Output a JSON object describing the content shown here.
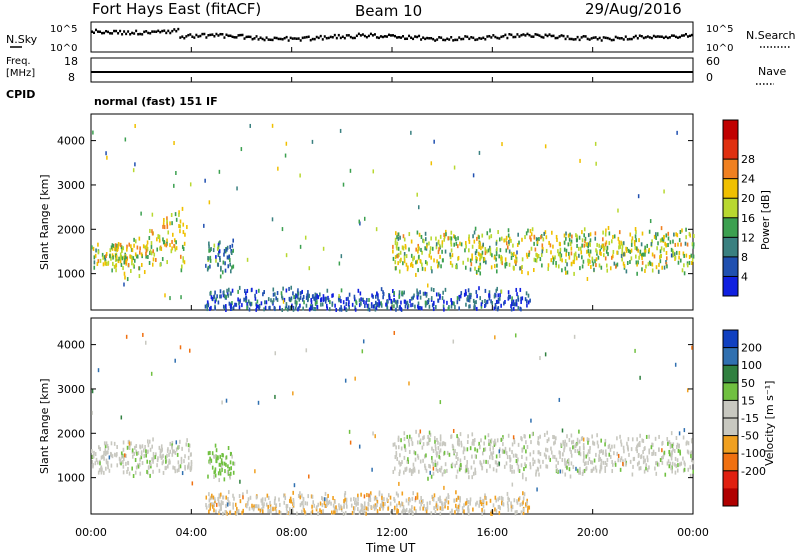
{
  "header": {
    "station": "Fort Hays East (fitACF)",
    "beam": "Beam 10",
    "date": "29/Aug/2016"
  },
  "param_panels": {
    "nsky_label": "N.Sky",
    "nsearch_label": "N.Search",
    "log_tick_top": "10^5",
    "log_tick_bottom": "10^0",
    "freq_label_line1": "Freq.",
    "freq_label_line2": "[MHz]",
    "freq_ticks": [
      "18",
      "8"
    ],
    "nave_label": "Nave",
    "nave_ticks": [
      "60",
      "0"
    ],
    "cpid_label": "CPID",
    "cpid_text": "normal (fast) 151 IF"
  },
  "axes": {
    "ylabel": "Slant Range [km]",
    "xlabel": "Time UT",
    "y_ticks": [
      "1000",
      "2000",
      "3000",
      "4000"
    ],
    "x_ticks": [
      "00:00",
      "04:00",
      "08:00",
      "12:00",
      "16:00",
      "20:00",
      "00:00"
    ]
  },
  "colorbars": {
    "power_label": "Power [dB]",
    "velocity_label": "Velocity [m s⁻¹]",
    "power_colors": [
      "#1020e0",
      "#2050b0",
      "#3a8080",
      "#3ca050",
      "#b8d830",
      "#f0c000",
      "#f08020",
      "#e03010",
      "#c00000"
    ],
    "velocity_colors": [
      "#1040c0",
      "#3070b0",
      "#308040",
      "#70c040",
      "#c8c8c0",
      "#c8c8c0",
      "#f0a020",
      "#f07010",
      "#e02010",
      "#b00000"
    ]
  },
  "chart_data": [
    {
      "type": "heatmap",
      "title": "Power",
      "x_range": [
        "00:00",
        "24:00"
      ],
      "ylim": [
        180,
        4600
      ],
      "colorbar": {
        "label": "Power [dB]",
        "ticks": [
          4,
          8,
          12,
          16,
          20,
          24,
          28
        ]
      },
      "scatter_regions": [
        {
          "t_start": 0.0,
          "t_end": 1.3,
          "range_center": 1450,
          "range_width": 300,
          "power_db": 18
        },
        {
          "t_start": 1.3,
          "t_end": 3.8,
          "range_center": 1500,
          "range_width": 400,
          "power_db": 20
        },
        {
          "t_start": 4.6,
          "t_end": 5.7,
          "range_center": 1400,
          "range_width": 400,
          "power_db": 10
        },
        {
          "t_start": 12.0,
          "t_end": 24.0,
          "range_center": 1550,
          "range_width": 500,
          "power_db": 18
        },
        {
          "t_start": 4.5,
          "t_end": 17.5,
          "range_center": 350,
          "range_width": 350,
          "power_db": 6
        }
      ]
    },
    {
      "type": "heatmap",
      "title": "Velocity",
      "x_range": [
        "00:00",
        "24:00"
      ],
      "ylim": [
        180,
        4600
      ],
      "colorbar": {
        "label": "Velocity [m s⁻¹]",
        "ticks": [
          200,
          100,
          50,
          15,
          -15,
          -50,
          -100,
          -200
        ]
      },
      "scatter_regions": [
        {
          "t_start": 0.0,
          "t_end": 4.0,
          "range_center": 1500,
          "range_width": 400,
          "velocity": 0
        },
        {
          "t_start": 4.6,
          "t_end": 5.7,
          "range_center": 1400,
          "range_width": 400,
          "velocity": 30
        },
        {
          "t_start": 12.0,
          "t_end": 24.0,
          "range_center": 1550,
          "range_width": 500,
          "velocity": 0
        },
        {
          "t_start": 4.5,
          "t_end": 17.5,
          "range_center": 350,
          "range_width": 350,
          "velocity": -40
        }
      ]
    }
  ]
}
